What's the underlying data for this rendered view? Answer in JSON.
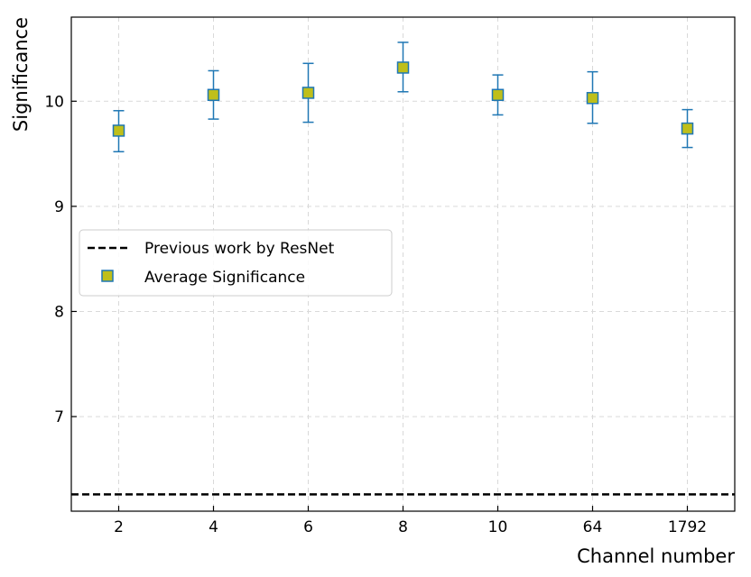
{
  "chart_data": {
    "type": "scatter",
    "title": "",
    "xlabel": "Channel number",
    "ylabel": "Significance",
    "categories": [
      "2",
      "4",
      "6",
      "8",
      "10",
      "64",
      "1792"
    ],
    "ylim": [
      6.1,
      10.8
    ],
    "yticks": [
      7,
      8,
      9,
      10
    ],
    "grid": true,
    "legend_position": "center-left",
    "series": [
      {
        "name": "Average Significance",
        "kind": "errorbar",
        "marker": "square",
        "marker_color": "#BFBF1A",
        "edge_color": "#1F77B4",
        "values": [
          9.72,
          10.06,
          10.08,
          10.32,
          10.06,
          10.03,
          9.74
        ],
        "err_low": [
          9.52,
          9.83,
          9.8,
          10.09,
          9.87,
          9.79,
          9.56
        ],
        "err_high": [
          9.91,
          10.29,
          10.36,
          10.56,
          10.25,
          10.28,
          9.92
        ]
      },
      {
        "name": "Previous work by ResNet",
        "kind": "hline",
        "style": "dashed",
        "color": "#000000",
        "value": 6.26
      }
    ]
  }
}
